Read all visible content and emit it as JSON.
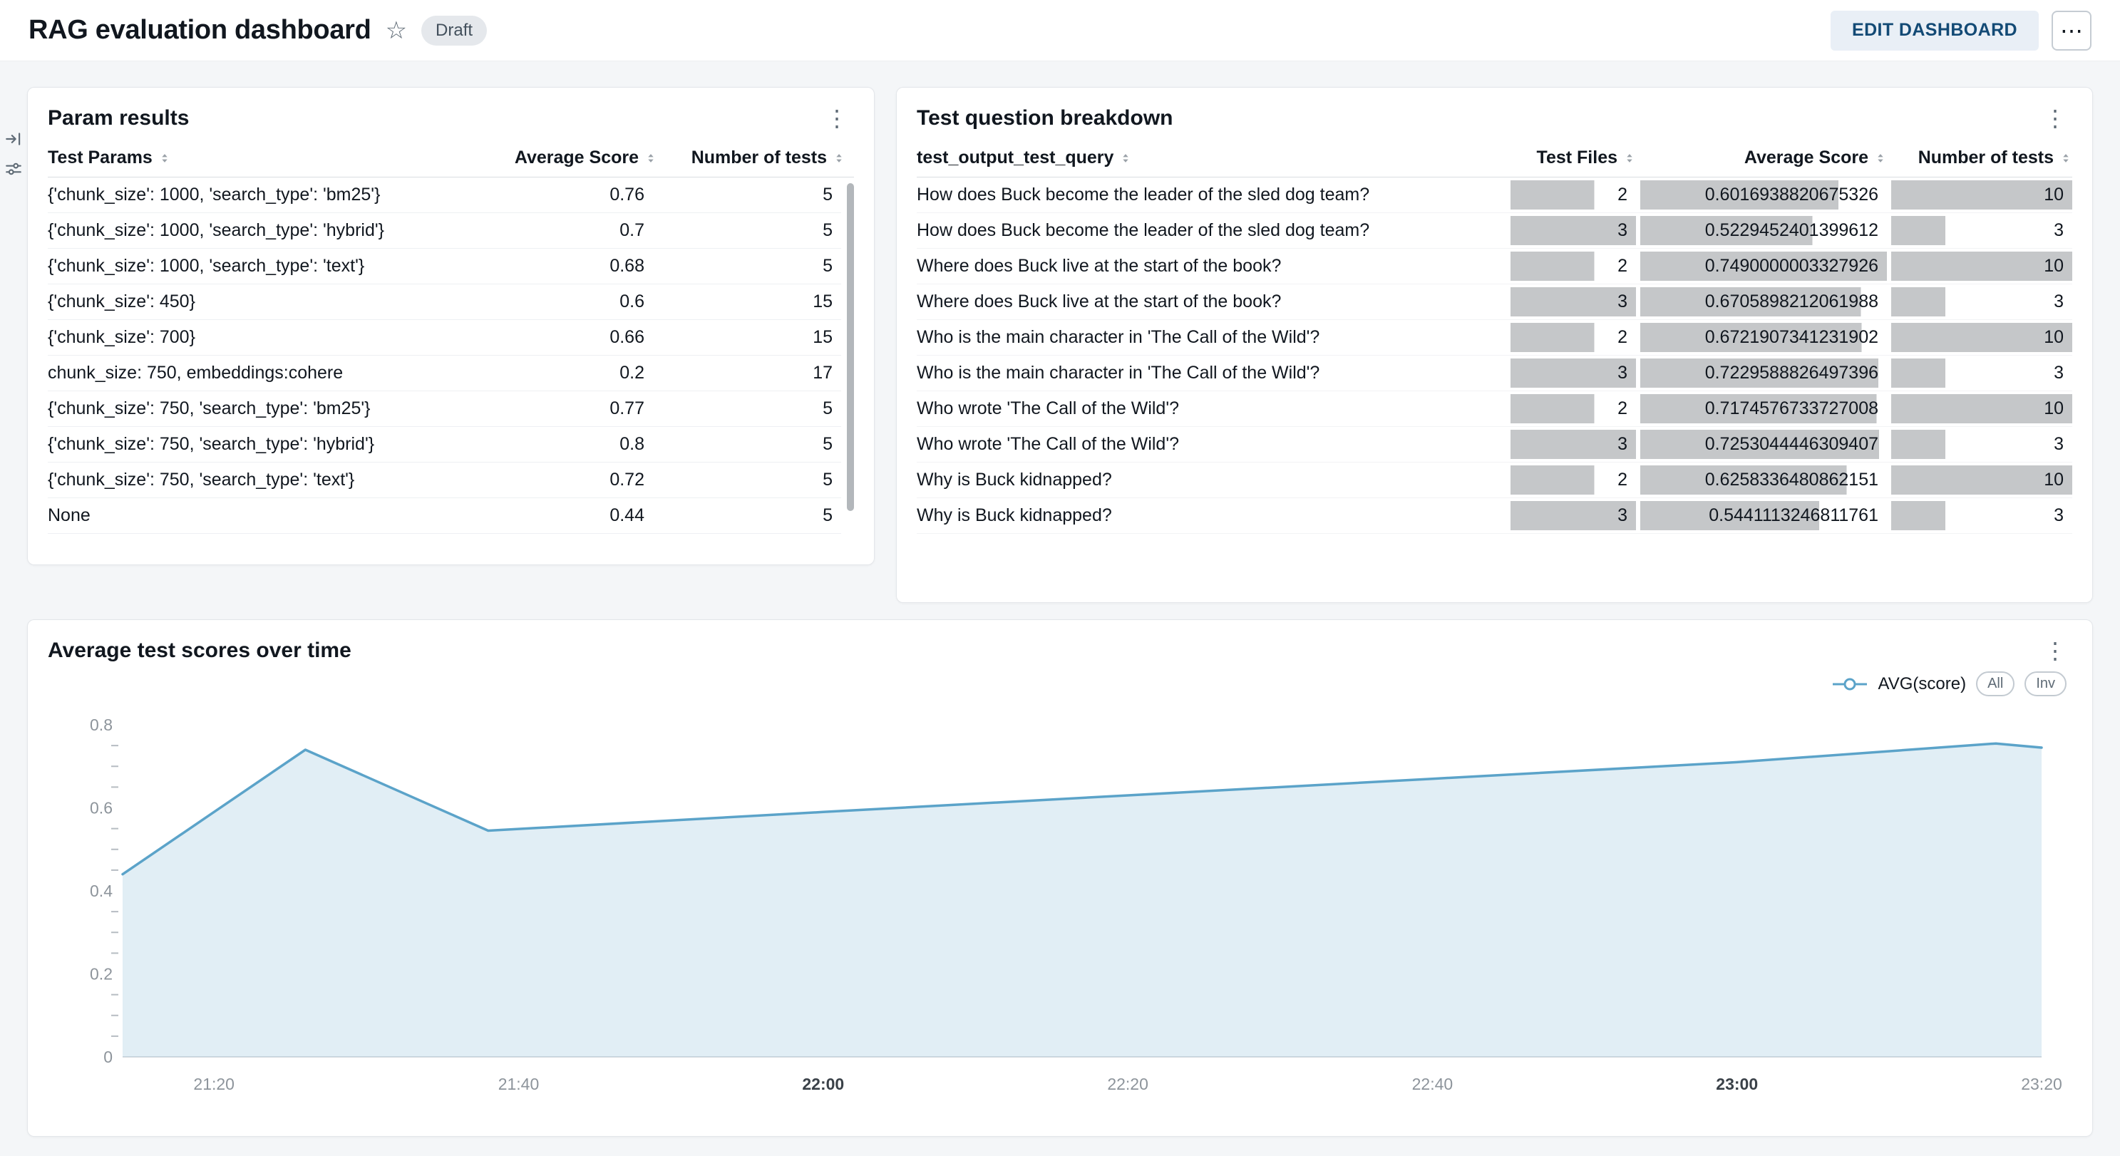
{
  "header": {
    "title": "RAG evaluation dashboard",
    "status_badge": "Draft",
    "edit_button": "EDIT DASHBOARD"
  },
  "icons": {
    "star": "☆",
    "more_horizontal": "⋯",
    "card_menu": "⋮"
  },
  "param_results": {
    "title": "Param results",
    "columns": {
      "params": "Test Params",
      "score": "Average Score",
      "tests": "Number of tests"
    },
    "rows": [
      {
        "test_params": "{'chunk_size': 1000, 'search_type': 'bm25'}",
        "average_score": "0.76",
        "number_of_tests": "5"
      },
      {
        "test_params": "{'chunk_size': 1000, 'search_type': 'hybrid'}",
        "average_score": "0.7",
        "number_of_tests": "5"
      },
      {
        "test_params": "{'chunk_size': 1000, 'search_type': 'text'}",
        "average_score": "0.68",
        "number_of_tests": "5"
      },
      {
        "test_params": "{'chunk_size': 450}",
        "average_score": "0.6",
        "number_of_tests": "15"
      },
      {
        "test_params": "{'chunk_size': 700}",
        "average_score": "0.66",
        "number_of_tests": "15"
      },
      {
        "test_params": "chunk_size: 750, embeddings:cohere",
        "average_score": "0.2",
        "number_of_tests": "17"
      },
      {
        "test_params": "{'chunk_size': 750, 'search_type': 'bm25'}",
        "average_score": "0.77",
        "number_of_tests": "5"
      },
      {
        "test_params": "{'chunk_size': 750, 'search_type': 'hybrid'}",
        "average_score": "0.8",
        "number_of_tests": "5"
      },
      {
        "test_params": "{'chunk_size': 750, 'search_type': 'text'}",
        "average_score": "0.72",
        "number_of_tests": "5"
      },
      {
        "test_params": "None",
        "average_score": "0.44",
        "number_of_tests": "5"
      }
    ]
  },
  "question_breakdown": {
    "title": "Test question breakdown",
    "columns": {
      "query": "test_output_test_query",
      "files": "Test Files",
      "score": "Average Score",
      "tests": "Number of tests"
    },
    "bar_color": "#c5c7c9",
    "rows": [
      {
        "query": "How does Buck become the leader of the sled dog team?",
        "files": 2,
        "score": "0.6016938820675326",
        "tests": 10
      },
      {
        "query": "How does Buck become the leader of the sled dog team?",
        "files": 3,
        "score": "0.5229452401399612",
        "tests": 3
      },
      {
        "query": "Where does Buck live at the start of the book?",
        "files": 2,
        "score": "0.7490000003327926",
        "tests": 10
      },
      {
        "query": "Where does Buck live at the start of the book?",
        "files": 3,
        "score": "0.6705898212061988",
        "tests": 3
      },
      {
        "query": "Who is the main character in 'The Call of the Wild'?",
        "files": 2,
        "score": "0.6721907341231902",
        "tests": 10
      },
      {
        "query": "Who is the main character in 'The Call of the Wild'?",
        "files": 3,
        "score": "0.7229588826497396",
        "tests": 3
      },
      {
        "query": "Who wrote 'The Call of the Wild'?",
        "files": 2,
        "score": "0.7174576733727008",
        "tests": 10
      },
      {
        "query": "Who wrote 'The Call of the Wild'?",
        "files": 3,
        "score": "0.7253044446309407",
        "tests": 3
      },
      {
        "query": "Why is Buck kidnapped?",
        "files": 2,
        "score": "0.6258336480862151",
        "tests": 10
      },
      {
        "query": "Why is Buck kidnapped?",
        "files": 3,
        "score": "0.5441113246811761",
        "tests": 3
      }
    ]
  },
  "score_chart": {
    "title": "Average test scores over time",
    "legend_label": "AVG(score)",
    "pill_all": "All",
    "pill_inv": "Inv"
  },
  "chart_data": {
    "type": "area",
    "title": "Average test scores over time",
    "series": [
      {
        "name": "AVG(score)",
        "color": "#5BA3C9",
        "points": [
          [
            0,
            0.44
          ],
          [
            12,
            0.74
          ],
          [
            24,
            0.545
          ],
          [
            46,
            0.59
          ],
          [
            66,
            0.63
          ],
          [
            86,
            0.67
          ],
          [
            106,
            0.71
          ],
          [
            123,
            0.755
          ],
          [
            126,
            0.745
          ]
        ]
      }
    ],
    "xlim_minutes": [
      0,
      126
    ],
    "x_ticks": [
      {
        "m": 6,
        "label": "21:20",
        "emphasis": false
      },
      {
        "m": 26,
        "label": "21:40",
        "emphasis": false
      },
      {
        "m": 46,
        "label": "22:00",
        "emphasis": true
      },
      {
        "m": 66,
        "label": "22:20",
        "emphasis": false
      },
      {
        "m": 86,
        "label": "22:40",
        "emphasis": false
      },
      {
        "m": 106,
        "label": "23:00",
        "emphasis": true
      },
      {
        "m": 126,
        "label": "23:20",
        "emphasis": false
      }
    ],
    "ylim": [
      0,
      0.8
    ],
    "y_ticks": [
      0,
      0.2,
      0.4,
      0.6,
      0.8
    ],
    "y_minor_step": 0.05,
    "grid": false,
    "legend_position": "top-right",
    "area_fill_opacity": 0.18
  }
}
